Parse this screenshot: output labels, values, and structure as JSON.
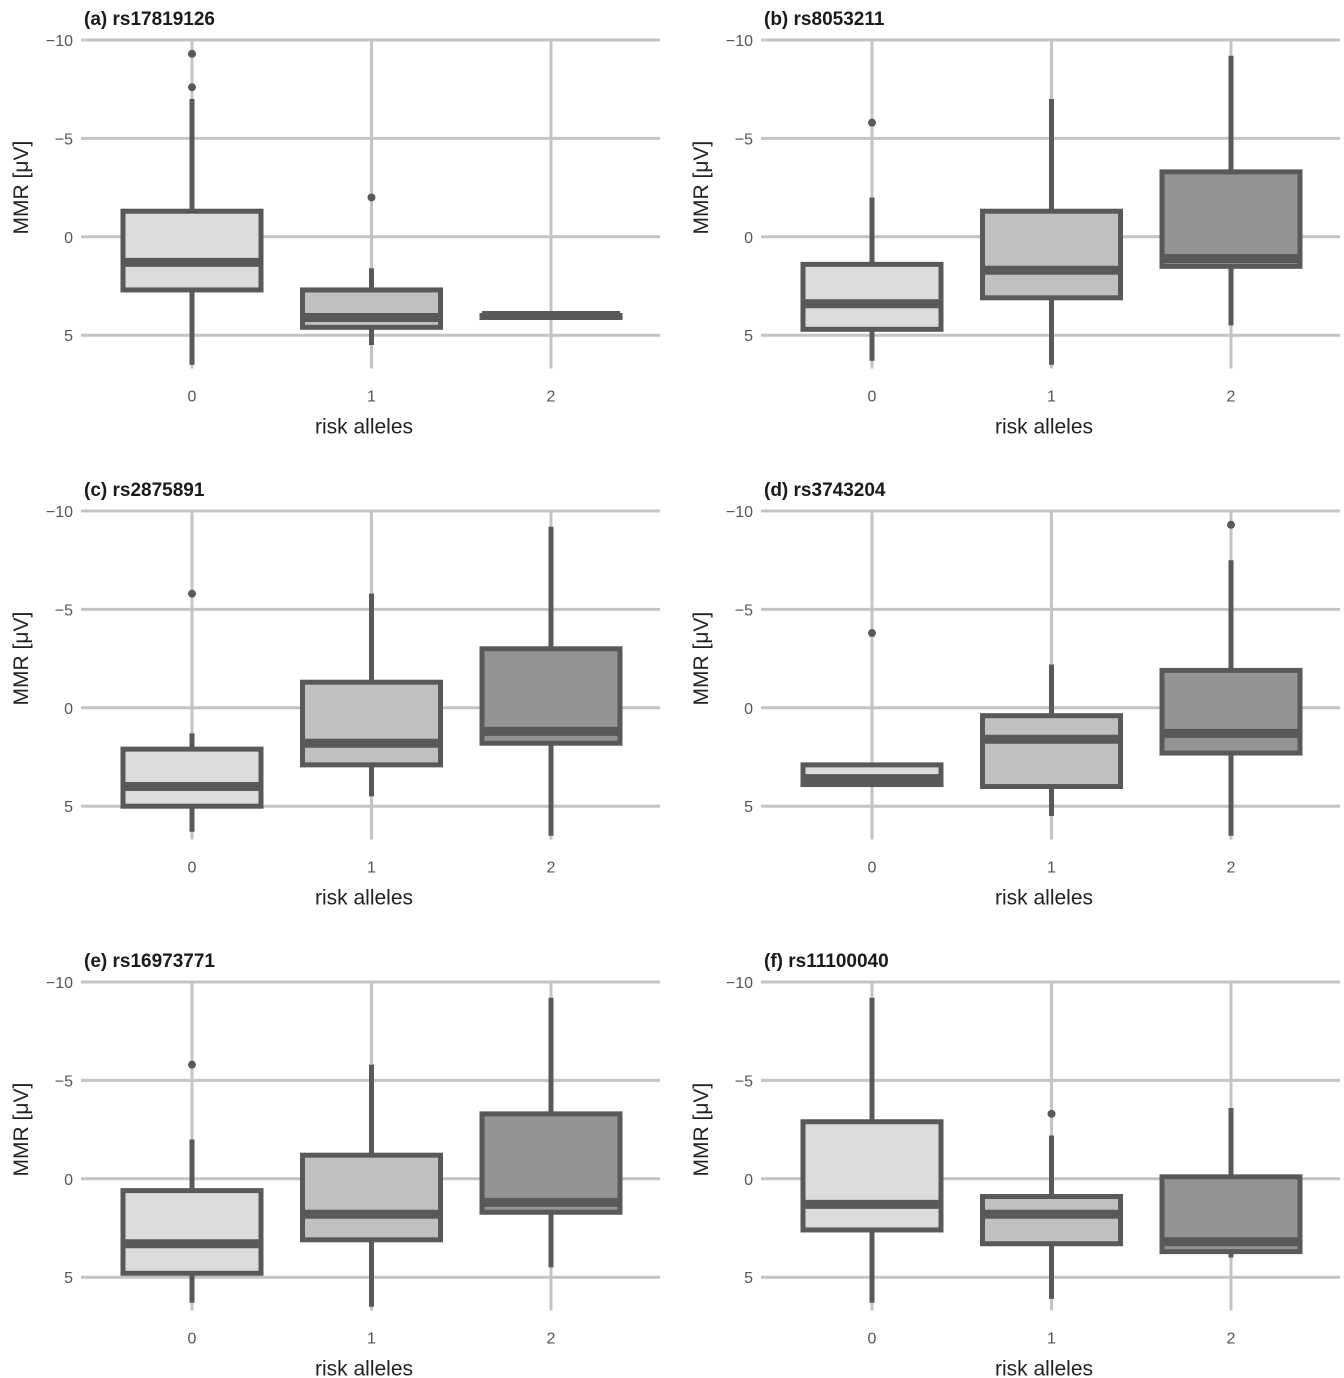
{
  "figure": {
    "y_axis_label": "MMR [μV]",
    "x_axis_label": "risk alleles"
  },
  "chart_data": [
    {
      "type": "boxplot",
      "title": "(a) rs17819126",
      "xlabel": "risk alleles",
      "ylabel": "MMR [μV]",
      "categories": [
        "0",
        "1",
        "2"
      ],
      "ylim": [
        7,
        -10
      ],
      "y_reversed": true,
      "yticks": [
        -10,
        -5,
        0,
        5
      ],
      "grid": true,
      "box_fills": [
        "#dcdcde",
        "#c0c0c2",
        "#939496"
      ],
      "boxes": [
        {
          "category": "0",
          "whisker_low": -7.0,
          "q1": -1.3,
          "median": 1.3,
          "q3": 2.7,
          "whisker_high": 6.5,
          "outliers": [
            -9.3,
            -7.6
          ]
        },
        {
          "category": "1",
          "whisker_low": 1.6,
          "q1": 2.7,
          "median": 4.1,
          "q3": 4.6,
          "whisker_high": 5.5,
          "outliers": [
            -2.0
          ]
        },
        {
          "category": "2",
          "whisker_low": 4.0,
          "q1": 4.0,
          "median": 4.0,
          "q3": 4.0,
          "whisker_high": 4.0,
          "outliers": []
        }
      ]
    },
    {
      "type": "boxplot",
      "title": "(b) rs8053211",
      "xlabel": "risk alleles",
      "ylabel": "MMR [μV]",
      "categories": [
        "0",
        "1",
        "2"
      ],
      "ylim": [
        7,
        -10
      ],
      "y_reversed": true,
      "yticks": [
        -10,
        -5,
        0,
        5
      ],
      "grid": true,
      "box_fills": [
        "#dcdcde",
        "#c0c0c2",
        "#939496"
      ],
      "boxes": [
        {
          "category": "0",
          "whisker_low": -2.0,
          "q1": 1.4,
          "median": 3.4,
          "q3": 4.7,
          "whisker_high": 6.3,
          "outliers": [
            -5.8
          ]
        },
        {
          "category": "1",
          "whisker_low": -7.0,
          "q1": -1.3,
          "median": 1.7,
          "q3": 3.1,
          "whisker_high": 6.5,
          "outliers": []
        },
        {
          "category": "2",
          "whisker_low": -9.2,
          "q1": -3.3,
          "median": 1.1,
          "q3": 1.5,
          "whisker_high": 4.5,
          "outliers": []
        }
      ]
    },
    {
      "type": "boxplot",
      "title": "(c) rs2875891",
      "xlabel": "risk alleles",
      "ylabel": "MMR [μV]",
      "categories": [
        "0",
        "1",
        "2"
      ],
      "ylim": [
        7,
        -10
      ],
      "y_reversed": true,
      "yticks": [
        -10,
        -5,
        0,
        5
      ],
      "grid": true,
      "box_fills": [
        "#dcdcde",
        "#c0c0c2",
        "#939496"
      ],
      "boxes": [
        {
          "category": "0",
          "whisker_low": 1.3,
          "q1": 2.1,
          "median": 4.0,
          "q3": 5.0,
          "whisker_high": 6.3,
          "outliers": [
            -5.8
          ]
        },
        {
          "category": "1",
          "whisker_low": -5.8,
          "q1": -1.3,
          "median": 1.8,
          "q3": 2.9,
          "whisker_high": 4.5,
          "outliers": []
        },
        {
          "category": "2",
          "whisker_low": -9.2,
          "q1": -3.0,
          "median": 1.2,
          "q3": 1.8,
          "whisker_high": 6.5,
          "outliers": []
        }
      ]
    },
    {
      "type": "boxplot",
      "title": "(d) rs3743204",
      "xlabel": "risk alleles",
      "ylabel": "MMR [μV]",
      "categories": [
        "0",
        "1",
        "2"
      ],
      "ylim": [
        7,
        -10
      ],
      "y_reversed": true,
      "yticks": [
        -10,
        -5,
        0,
        5
      ],
      "grid": true,
      "box_fills": [
        "#dcdcde",
        "#c0c0c2",
        "#939496"
      ],
      "boxes": [
        {
          "category": "0",
          "whisker_low": 2.9,
          "q1": 2.9,
          "median": 3.6,
          "q3": 3.9,
          "whisker_high": 3.9,
          "outliers": [
            -3.8
          ]
        },
        {
          "category": "1",
          "whisker_low": -2.2,
          "q1": 0.4,
          "median": 1.6,
          "q3": 4.0,
          "whisker_high": 5.5,
          "outliers": []
        },
        {
          "category": "2",
          "whisker_low": -7.5,
          "q1": -1.9,
          "median": 1.3,
          "q3": 2.3,
          "whisker_high": 6.5,
          "outliers": [
            -9.3
          ]
        }
      ]
    },
    {
      "type": "boxplot",
      "title": "(e) rs16973771",
      "xlabel": "risk alleles",
      "ylabel": "MMR [μV]",
      "categories": [
        "0",
        "1",
        "2"
      ],
      "ylim": [
        7,
        -10
      ],
      "y_reversed": true,
      "yticks": [
        -10,
        -5,
        0,
        5
      ],
      "grid": true,
      "box_fills": [
        "#dcdcde",
        "#c0c0c2",
        "#939496"
      ],
      "boxes": [
        {
          "category": "0",
          "whisker_low": -2.0,
          "q1": 0.6,
          "median": 3.3,
          "q3": 4.8,
          "whisker_high": 6.3,
          "outliers": [
            -5.8
          ]
        },
        {
          "category": "1",
          "whisker_low": -5.8,
          "q1": -1.2,
          "median": 1.8,
          "q3": 3.1,
          "whisker_high": 6.5,
          "outliers": []
        },
        {
          "category": "2",
          "whisker_low": -9.2,
          "q1": -3.3,
          "median": 1.2,
          "q3": 1.7,
          "whisker_high": 4.5,
          "outliers": []
        }
      ]
    },
    {
      "type": "boxplot",
      "title": "(f) rs11100040",
      "xlabel": "risk alleles",
      "ylabel": "MMR [μV]",
      "categories": [
        "0",
        "1",
        "2"
      ],
      "ylim": [
        7,
        -10
      ],
      "y_reversed": true,
      "yticks": [
        -10,
        -5,
        0,
        5
      ],
      "grid": true,
      "box_fills": [
        "#dcdcde",
        "#c0c0c2",
        "#939496"
      ],
      "boxes": [
        {
          "category": "0",
          "whisker_low": -9.2,
          "q1": -2.9,
          "median": 1.3,
          "q3": 2.6,
          "whisker_high": 6.3,
          "outliers": []
        },
        {
          "category": "1",
          "whisker_low": -2.2,
          "q1": 0.9,
          "median": 1.8,
          "q3": 3.3,
          "whisker_high": 6.1,
          "outliers": [
            -3.3
          ]
        },
        {
          "category": "2",
          "whisker_low": -3.6,
          "q1": -0.1,
          "median": 3.2,
          "q3": 3.7,
          "whisker_high": 4.0,
          "outliers": []
        }
      ]
    }
  ]
}
